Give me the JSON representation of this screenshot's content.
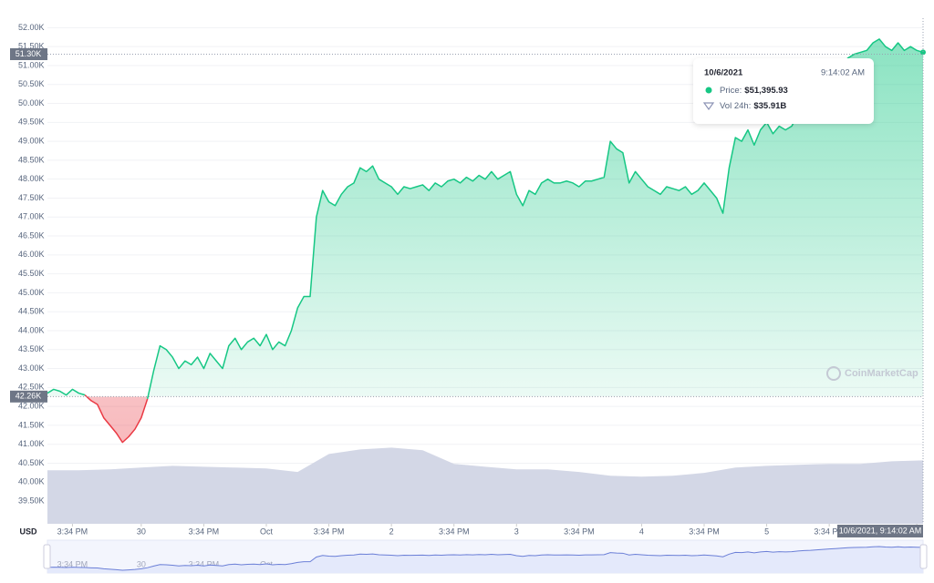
{
  "chart_data": {
    "type": "line",
    "currency": "USD",
    "watermark": "CoinMarketCap",
    "xlim": [
      0,
      140
    ],
    "xticks": [
      {
        "value": 4,
        "label": "3:34 PM"
      },
      {
        "value": 15,
        "label": "30"
      },
      {
        "value": 25,
        "label": "3:34 PM"
      },
      {
        "value": 35,
        "label": "Oct"
      },
      {
        "value": 45,
        "label": "3:34 PM"
      },
      {
        "value": 55,
        "label": "2"
      },
      {
        "value": 65,
        "label": "3:34 PM"
      },
      {
        "value": 75,
        "label": "3"
      },
      {
        "value": 85,
        "label": "3:34 PM"
      },
      {
        "value": 95,
        "label": "4"
      },
      {
        "value": 105,
        "label": "3:34 PM"
      },
      {
        "value": 115,
        "label": "5"
      },
      {
        "value": 125,
        "label": "3:34 PM"
      },
      {
        "value": 139,
        "label": "6"
      }
    ],
    "ylim": [
      38.9,
      52.25
    ],
    "yticks": [
      {
        "value": 52,
        "label": "52.00K"
      },
      {
        "value": 51.5,
        "label": "51.50K"
      },
      {
        "value": 51,
        "label": "51.00K"
      },
      {
        "value": 50.5,
        "label": "50.50K"
      },
      {
        "value": 50,
        "label": "50.00K"
      },
      {
        "value": 49.5,
        "label": "49.50K"
      },
      {
        "value": 49,
        "label": "49.00K"
      },
      {
        "value": 48.5,
        "label": "48.50K"
      },
      {
        "value": 48,
        "label": "48.00K"
      },
      {
        "value": 47.5,
        "label": "47.50K"
      },
      {
        "value": 47,
        "label": "47.00K"
      },
      {
        "value": 46.5,
        "label": "46.50K"
      },
      {
        "value": 46,
        "label": "46.00K"
      },
      {
        "value": 45.5,
        "label": "45.50K"
      },
      {
        "value": 45,
        "label": "45.00K"
      },
      {
        "value": 44.5,
        "label": "44.50K"
      },
      {
        "value": 44,
        "label": "44.00K"
      },
      {
        "value": 43.5,
        "label": "43.50K"
      },
      {
        "value": 43,
        "label": "43.00K"
      },
      {
        "value": 42.5,
        "label": "42.50K"
      },
      {
        "value": 42,
        "label": "42.00K"
      },
      {
        "value": 41.5,
        "label": "41.50K"
      },
      {
        "value": 41,
        "label": "41.00K"
      },
      {
        "value": 40.5,
        "label": "40.50K"
      },
      {
        "value": 40,
        "label": "40.00K"
      },
      {
        "value": 39.5,
        "label": "39.50K"
      }
    ],
    "grid": true,
    "baseline": {
      "value": 42.26,
      "label": "42.26K"
    },
    "crosshair": {
      "y": {
        "value": 51.3,
        "label": "51.30K"
      },
      "x": {
        "value": 140,
        "label": "10/6/2021, 9:14:02 AM"
      }
    },
    "price": {
      "up_color": "#16c784",
      "down_color": "#ea3943",
      "values": [
        42.35,
        42.45,
        42.4,
        42.3,
        42.45,
        42.35,
        42.3,
        42.15,
        42.05,
        41.7,
        41.5,
        41.3,
        41.05,
        41.2,
        41.4,
        41.7,
        42.2,
        42.95,
        43.6,
        43.5,
        43.3,
        43.0,
        43.2,
        43.1,
        43.3,
        43.0,
        43.4,
        43.2,
        43.0,
        43.6,
        43.8,
        43.5,
        43.7,
        43.8,
        43.6,
        43.9,
        43.5,
        43.7,
        43.6,
        44.0,
        44.6,
        44.9,
        44.9,
        47.0,
        47.7,
        47.4,
        47.3,
        47.6,
        47.8,
        47.9,
        48.3,
        48.2,
        48.35,
        48.0,
        47.9,
        47.8,
        47.6,
        47.8,
        47.75,
        47.8,
        47.85,
        47.7,
        47.9,
        47.8,
        47.95,
        48.0,
        47.9,
        48.05,
        47.95,
        48.1,
        48.0,
        48.2,
        48.0,
        48.1,
        48.2,
        47.6,
        47.3,
        47.7,
        47.6,
        47.9,
        48.0,
        47.9,
        47.9,
        47.95,
        47.9,
        47.8,
        47.95,
        47.95,
        48.0,
        48.05,
        49.0,
        48.8,
        48.7,
        47.9,
        48.2,
        48.0,
        47.8,
        47.7,
        47.6,
        47.8,
        47.75,
        47.7,
        47.8,
        47.6,
        47.7,
        47.9,
        47.7,
        47.5,
        47.1,
        48.3,
        49.1,
        49.0,
        49.3,
        48.9,
        49.3,
        49.5,
        49.2,
        49.4,
        49.3,
        49.4,
        49.7,
        49.9,
        50.0,
        50.2,
        50.4,
        50.6,
        50.8,
        51.0,
        51.2,
        51.3,
        51.35,
        51.4,
        51.6,
        51.7,
        51.5,
        51.4,
        51.6,
        51.4,
        51.5,
        51.4,
        51.35
      ]
    },
    "volume": {
      "color": "#d3d7e6",
      "ylim": [
        0,
        50
      ],
      "x": [
        0,
        5,
        10,
        15,
        20,
        25,
        30,
        35,
        40,
        45,
        50,
        55,
        60,
        65,
        70,
        75,
        80,
        85,
        90,
        95,
        100,
        105,
        110,
        115,
        120,
        125,
        130,
        135,
        140
      ],
      "values": [
        30.3,
        30.3,
        30.8,
        31.8,
        32.8,
        32.3,
        31.8,
        31.3,
        29.3,
        39.5,
        42.1,
        43.1,
        41.6,
        33.9,
        32.3,
        30.8,
        30.8,
        29.3,
        27.2,
        26.7,
        27.2,
        28.8,
        31.8,
        32.8,
        33.4,
        33.9,
        33.9,
        35.4,
        35.91
      ]
    },
    "tooltip": {
      "date": "10/6/2021",
      "time": "9:14:02 AM",
      "price_label": "Price:",
      "price": "$51,395.93",
      "volume_label": "Vol 24h:",
      "volume": "$35.91B"
    }
  }
}
